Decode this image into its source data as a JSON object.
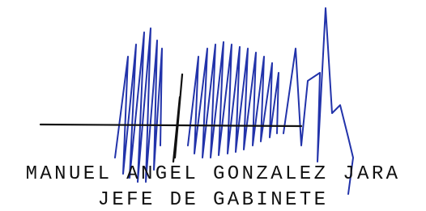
{
  "signature": {
    "name": "MANUEL ANGEL GONZALEZ JARA",
    "position": "JEFE DE GABINETE"
  }
}
